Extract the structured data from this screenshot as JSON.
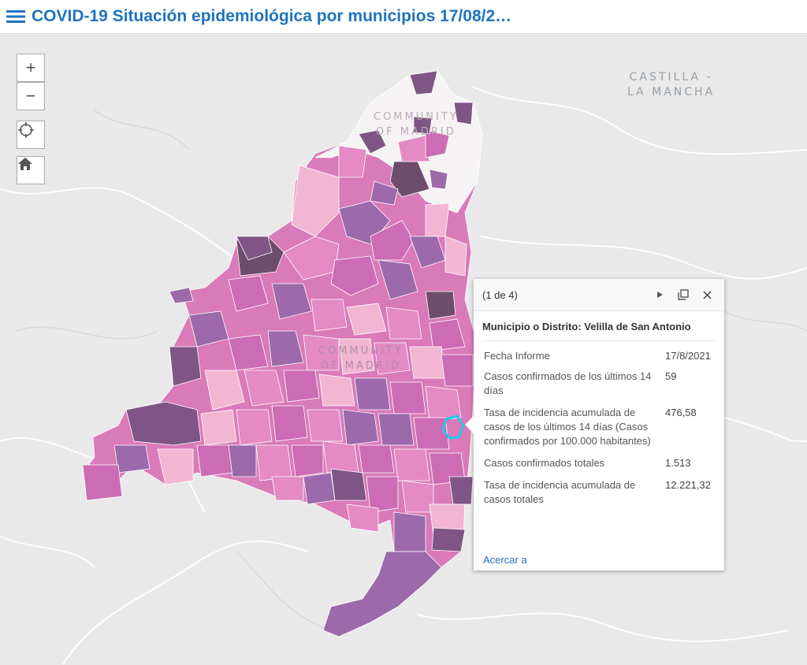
{
  "header": {
    "title": "COVID-19 Situación epidemiológica por municipios 17/08/2…"
  },
  "map_controls": {
    "zoom_in": "+",
    "zoom_out": "−"
  },
  "map_labels": [
    {
      "line1": "CASTILLA -",
      "line2": "LA MANCHA"
    },
    {
      "line1": "COMMUNITY",
      "line2": "OF MADRID"
    },
    {
      "line1": "COMMUNITY",
      "line2": "OF MADRID"
    }
  ],
  "popup": {
    "count": "(1 de 4)",
    "title": "Municipio o Distrito: Velilla de San Antonio",
    "fields": [
      {
        "label": "Fecha Informe",
        "value": "17/8/2021"
      },
      {
        "label": "Casos confirmados de los últimos 14 días",
        "value": "59"
      },
      {
        "label": "Tasa de incidencia acumulada de casos de los últimos 14 días (Casos confirmados por 100.000 habitantes)",
        "value": "476,58"
      },
      {
        "label": "Casos confirmados totales",
        "value": "1.513"
      },
      {
        "label": "Tasa de incidencia acumulada de casos totales",
        "value": "12.221,32"
      }
    ],
    "zoom_link": "Acercar a"
  },
  "colors": {
    "accent": "#1e73be",
    "choropleth": [
      "#f5f3f4",
      "#f2b6d2",
      "#e48ac4",
      "#cc6cb4",
      "#9c69ab",
      "#7f5586",
      "#6e4c6d"
    ],
    "selected_outline": "#29c4e8"
  }
}
